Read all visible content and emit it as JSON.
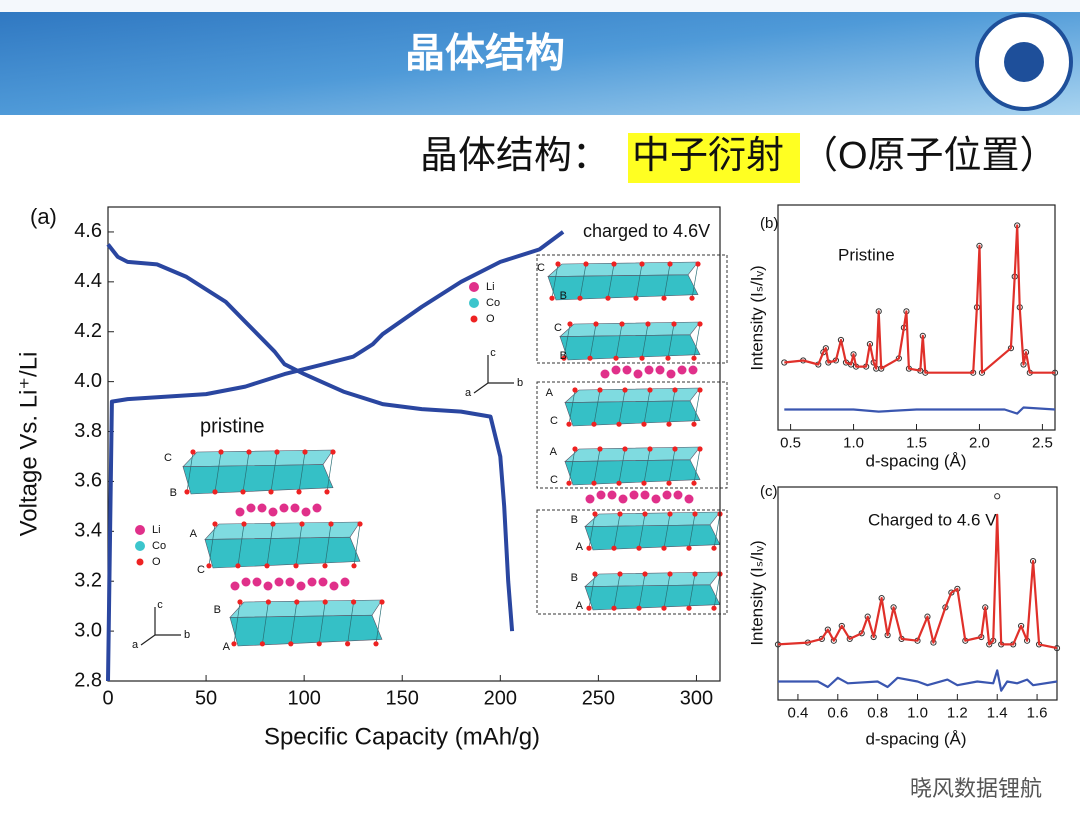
{
  "header": {
    "title": "晶体结构",
    "subtitle": "晶体结构：",
    "highlight": "中子衍射",
    "note": "（O原子位置）"
  },
  "watermark": "晓风数据锂航",
  "chart_data": [
    {
      "type": "line",
      "panel_label": "(a)",
      "xlabel": "Specific Capacity (mAh/g)",
      "ylabel": "Voltage Vs. Li⁺/Li",
      "xlim": [
        0,
        312
      ],
      "ylim": [
        2.8,
        4.7
      ],
      "xticks": [
        0,
        50,
        100,
        150,
        200,
        250,
        300
      ],
      "yticks": [
        2.8,
        {
          "value": 3,
          "label": "3.0"
        },
        3.2,
        3.4,
        3.6,
        3.8,
        {
          "value": 4,
          "label": "4.0"
        },
        4.2,
        4.4,
        4.6
      ],
      "series": [
        {
          "color": "#2a46a0",
          "x": [
            0,
            2,
            10,
            50,
            70,
            90,
            110,
            125,
            135,
            140,
            160,
            180,
            200,
            220,
            232
          ],
          "values": [
            2.8,
            3.92,
            3.93,
            3.95,
            3.98,
            4.03,
            4.07,
            4.1,
            4.15,
            4.19,
            4.3,
            4.4,
            4.48,
            4.53,
            4.6
          ]
        },
        {
          "color": "#2a46a0",
          "x": [
            0,
            5,
            10,
            25,
            40,
            60,
            70,
            80,
            85,
            90,
            100,
            120,
            140,
            160,
            180,
            195,
            200,
            202,
            204,
            206
          ],
          "values": [
            4.55,
            4.5,
            4.48,
            4.47,
            4.42,
            4.32,
            4.24,
            4.16,
            4.12,
            4.07,
            4.03,
            3.96,
            3.91,
            3.89,
            3.88,
            3.86,
            3.7,
            3.5,
            3.2,
            3.0
          ]
        }
      ],
      "annotations": {
        "pristine": "pristine",
        "charged": "charged to 4.6V",
        "pristine_layers": [
          "C",
          "B",
          "A",
          "C",
          "B",
          "A"
        ],
        "charged_layers": [
          "C",
          "B",
          "C",
          "B",
          "A",
          "C",
          "A",
          "C",
          "B",
          "A",
          "B",
          "A"
        ],
        "legend": [
          "Li",
          "Co",
          "O"
        ],
        "axes": [
          "a",
          "b",
          "c"
        ]
      }
    },
    {
      "type": "line",
      "panel_label": "(b)",
      "annotation": "Pristine",
      "xlabel": "d-spacing (Å)",
      "ylabel": "Intensity (Iₛ/Iᵥ)",
      "xlim": [
        0.4,
        2.6
      ],
      "ylim": [
        0,
        1.1
      ],
      "xticks": [
        0.5,
        {
          "value": 1,
          "label": "1.0"
        },
        1.5,
        {
          "value": 2,
          "label": "2.0"
        },
        2.5
      ],
      "series": [
        {
          "color": "#333333",
          "style": "markers",
          "x": [
            0.45,
            0.6,
            0.72,
            0.76,
            0.78,
            0.8,
            0.86,
            0.9,
            0.94,
            0.98,
            1.0,
            1.02,
            1.1,
            1.13,
            1.16,
            1.18,
            1.2,
            1.22,
            1.36,
            1.4,
            1.42,
            1.44,
            1.53,
            1.55,
            1.57,
            1.95,
            1.98,
            2.0,
            2.02,
            2.25,
            2.28,
            2.3,
            2.32,
            2.35,
            2.37,
            2.4,
            2.6
          ],
          "values": [
            0.33,
            0.34,
            0.32,
            0.38,
            0.4,
            0.33,
            0.34,
            0.44,
            0.33,
            0.32,
            0.37,
            0.31,
            0.31,
            0.42,
            0.33,
            0.3,
            0.58,
            0.3,
            0.35,
            0.5,
            0.58,
            0.3,
            0.29,
            0.46,
            0.28,
            0.28,
            0.6,
            0.9,
            0.28,
            0.4,
            0.75,
            1.0,
            0.6,
            0.32,
            0.38,
            0.28,
            0.28
          ]
        },
        {
          "color": "#e0302a",
          "x": [
            0.45,
            0.6,
            0.72,
            0.76,
            0.78,
            0.8,
            0.86,
            0.9,
            0.94,
            0.98,
            1.0,
            1.02,
            1.1,
            1.13,
            1.16,
            1.18,
            1.2,
            1.22,
            1.36,
            1.4,
            1.42,
            1.44,
            1.53,
            1.55,
            1.57,
            1.95,
            1.98,
            2.0,
            2.02,
            2.25,
            2.28,
            2.3,
            2.32,
            2.35,
            2.37,
            2.4,
            2.6
          ],
          "values": [
            0.33,
            0.34,
            0.32,
            0.38,
            0.4,
            0.33,
            0.34,
            0.44,
            0.33,
            0.32,
            0.37,
            0.31,
            0.31,
            0.42,
            0.33,
            0.3,
            0.58,
            0.3,
            0.35,
            0.5,
            0.58,
            0.3,
            0.29,
            0.46,
            0.28,
            0.28,
            0.6,
            0.9,
            0.28,
            0.4,
            0.75,
            1.0,
            0.6,
            0.32,
            0.38,
            0.28,
            0.28
          ]
        },
        {
          "color": "#3a56b0",
          "x": [
            0.45,
            0.8,
            1.0,
            1.2,
            1.5,
            2.0,
            2.2,
            2.3,
            2.35,
            2.6
          ],
          "values": [
            0.1,
            0.1,
            0.1,
            0.09,
            0.1,
            0.1,
            0.1,
            0.08,
            0.11,
            0.1
          ]
        }
      ]
    },
    {
      "type": "line",
      "panel_label": "(c)",
      "annotation": "Charged to 4.6 V",
      "xlabel": "d-spacing (Å)",
      "ylabel": "Intensity (Iₛ/Iᵥ)",
      "xlim": [
        0.3,
        1.7
      ],
      "ylim": [
        0,
        1.15
      ],
      "xticks": [
        0.4,
        0.6,
        0.8,
        {
          "value": 1,
          "label": "1.0"
        },
        1.2,
        1.4,
        1.6
      ],
      "series": [
        {
          "color": "#333333",
          "style": "markers",
          "x": [
            0.3,
            0.45,
            0.52,
            0.55,
            0.58,
            0.62,
            0.66,
            0.72,
            0.75,
            0.78,
            0.82,
            0.85,
            0.88,
            0.92,
            1.0,
            1.05,
            1.08,
            1.14,
            1.17,
            1.2,
            1.24,
            1.32,
            1.34,
            1.36,
            1.38,
            1.4,
            1.42,
            1.48,
            1.52,
            1.55,
            1.58,
            1.61,
            1.7
          ],
          "values": [
            0.3,
            0.31,
            0.33,
            0.38,
            0.32,
            0.4,
            0.33,
            0.36,
            0.45,
            0.34,
            0.55,
            0.35,
            0.5,
            0.33,
            0.32,
            0.45,
            0.31,
            0.5,
            0.58,
            0.6,
            0.32,
            0.34,
            0.5,
            0.3,
            0.32,
            1.1,
            0.3,
            0.3,
            0.4,
            0.32,
            0.75,
            0.3,
            0.28
          ]
        },
        {
          "color": "#e0302a",
          "x": [
            0.3,
            0.45,
            0.52,
            0.55,
            0.58,
            0.62,
            0.66,
            0.72,
            0.75,
            0.78,
            0.82,
            0.85,
            0.88,
            0.92,
            1.0,
            1.05,
            1.08,
            1.14,
            1.17,
            1.2,
            1.24,
            1.32,
            1.34,
            1.36,
            1.38,
            1.4,
            1.42,
            1.48,
            1.52,
            1.55,
            1.58,
            1.61,
            1.7
          ],
          "values": [
            0.3,
            0.31,
            0.33,
            0.38,
            0.32,
            0.4,
            0.33,
            0.36,
            0.45,
            0.34,
            0.55,
            0.35,
            0.5,
            0.33,
            0.32,
            0.45,
            0.31,
            0.5,
            0.58,
            0.6,
            0.32,
            0.34,
            0.5,
            0.3,
            0.32,
            1.0,
            0.3,
            0.3,
            0.4,
            0.32,
            0.75,
            0.3,
            0.28
          ]
        },
        {
          "color": "#3a56b0",
          "x": [
            0.3,
            0.5,
            0.55,
            0.6,
            0.65,
            0.8,
            0.85,
            0.9,
            1.0,
            1.05,
            1.15,
            1.2,
            1.3,
            1.38,
            1.4,
            1.42,
            1.45,
            1.5,
            1.55,
            1.58,
            1.7
          ],
          "values": [
            0.1,
            0.1,
            0.07,
            0.12,
            0.09,
            0.1,
            0.07,
            0.12,
            0.1,
            0.08,
            0.11,
            0.08,
            0.1,
            0.09,
            0.16,
            0.05,
            0.1,
            0.09,
            0.11,
            0.08,
            0.1
          ]
        }
      ]
    }
  ]
}
